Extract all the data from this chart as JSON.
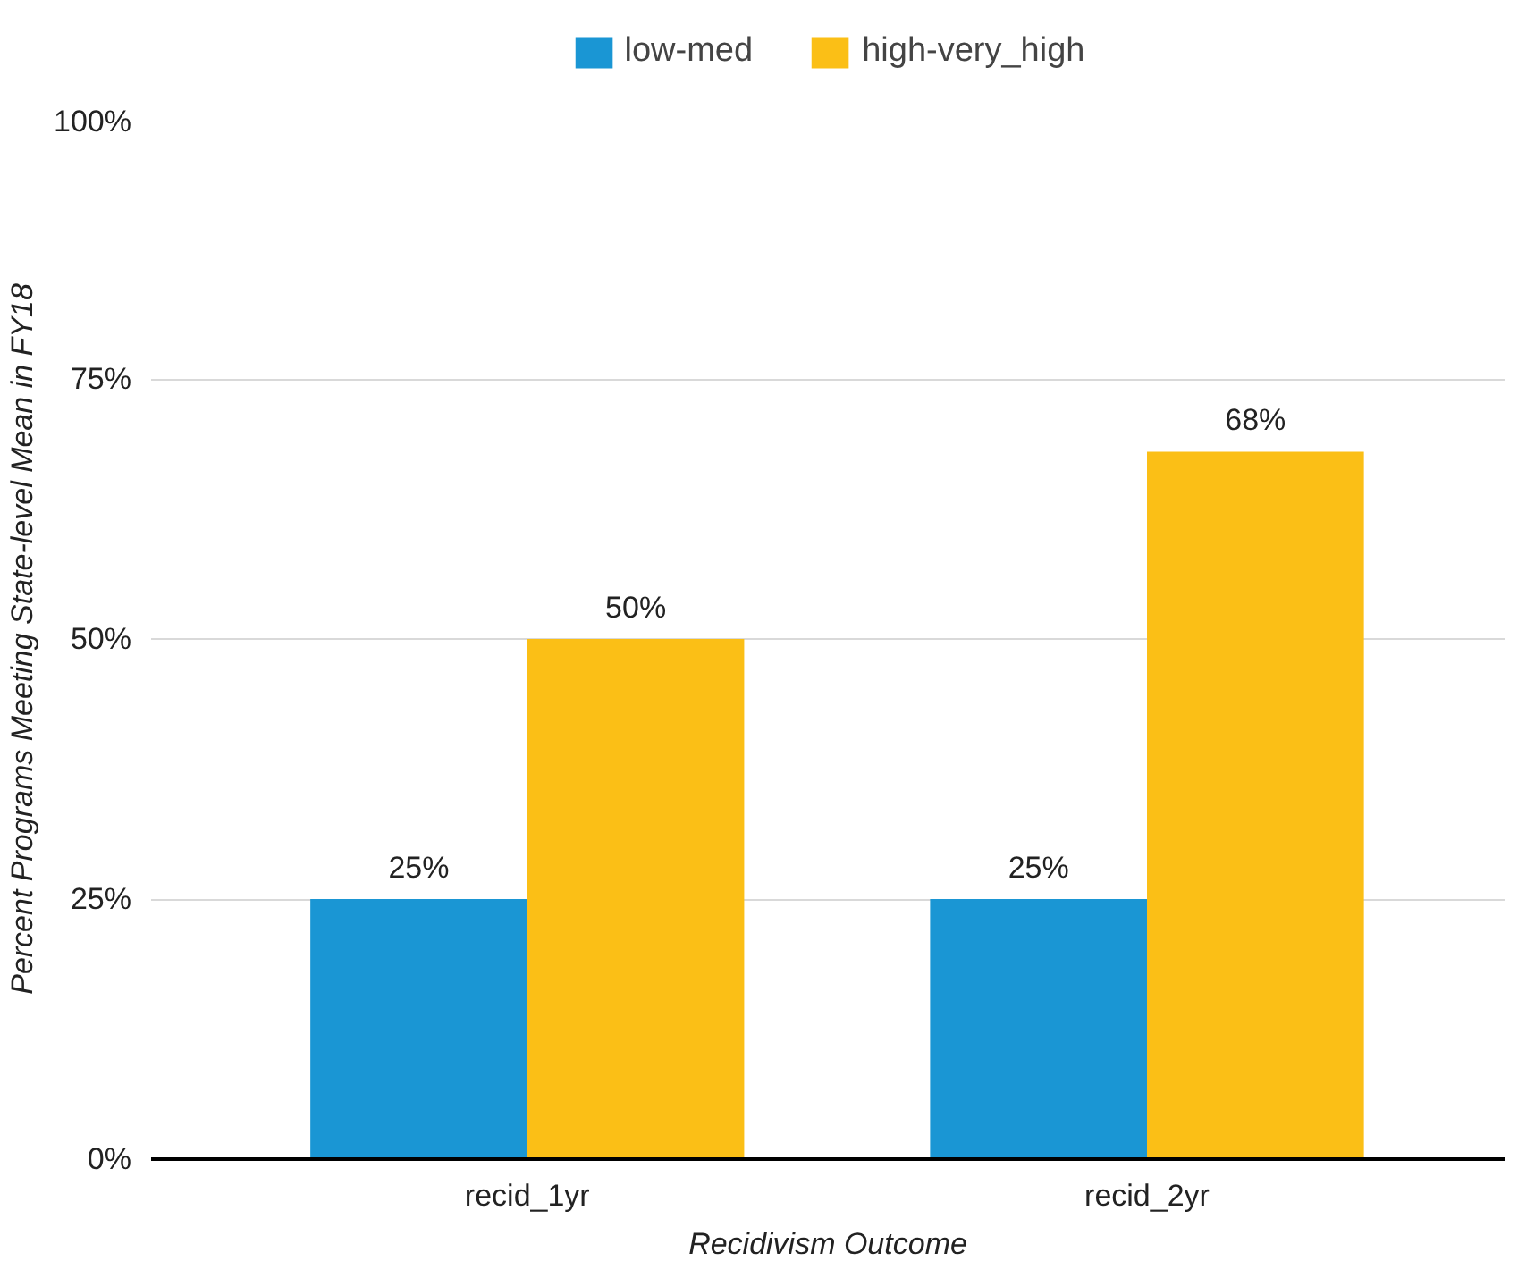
{
  "chart_data": {
    "type": "bar",
    "xlabel": "Recidivism Outcome",
    "ylabel": "Percent Programs Meeting State-level Mean in FY18",
    "categories": [
      "recid_1yr",
      "recid_2yr"
    ],
    "series": [
      {
        "name": "low-med",
        "color": "#1a96d4",
        "values": [
          25,
          25
        ],
        "value_labels": [
          "25%",
          "25%"
        ]
      },
      {
        "name": "high-very_high",
        "color": "#fbbf16",
        "values": [
          50,
          68
        ],
        "value_labels": [
          "50%",
          "68%"
        ]
      }
    ],
    "ylim": [
      0,
      100
    ],
    "yticks": [
      {
        "value": 0,
        "label": "0%"
      },
      {
        "value": 25,
        "label": "25%"
      },
      {
        "value": 50,
        "label": "50%"
      },
      {
        "value": 75,
        "label": "75%"
      },
      {
        "value": 100,
        "label": "100%"
      }
    ],
    "grid": "y",
    "legend": "top"
  }
}
